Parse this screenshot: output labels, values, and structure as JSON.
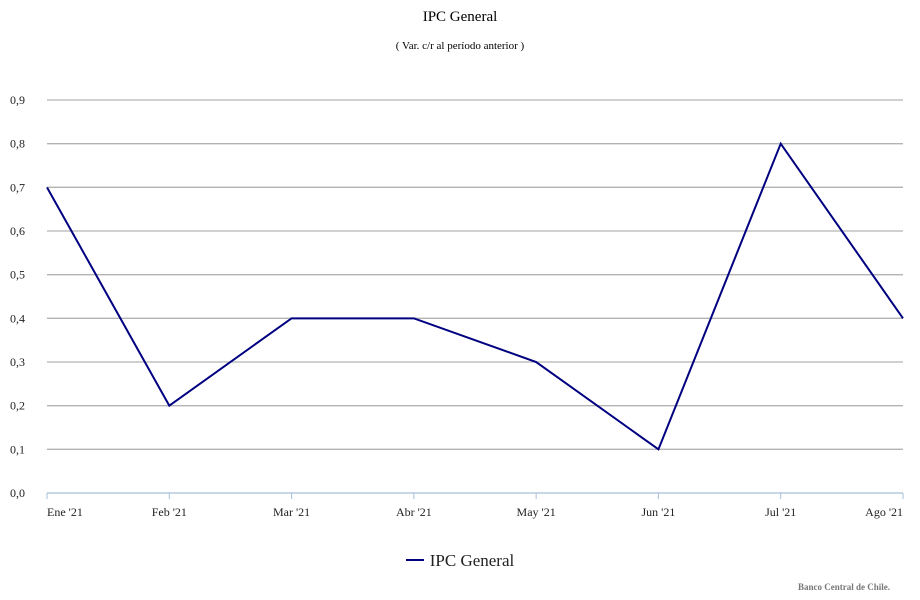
{
  "chart_data": {
    "type": "line",
    "title": "IPC General",
    "subtitle": "( Var. c/r al período anterior )",
    "categories": [
      "Ene '21",
      "Feb '21",
      "Mar '21",
      "Abr '21",
      "May '21",
      "Jun '21",
      "Jul '21",
      "Ago '21"
    ],
    "series": [
      {
        "name": "IPC General",
        "values": [
          0.7,
          0.2,
          0.4,
          0.4,
          0.3,
          0.1,
          0.8,
          0.4
        ],
        "color": "#000080"
      }
    ],
    "ylim": [
      0,
      0.9
    ],
    "yticks": [
      "0,0",
      "0,1",
      "0,2",
      "0,3",
      "0,4",
      "0,5",
      "0,6",
      "0,7",
      "0,8",
      "0,9"
    ],
    "grid": true,
    "legend_position": "bottom"
  },
  "footer": {
    "credit": "Banco Central de Chile."
  }
}
